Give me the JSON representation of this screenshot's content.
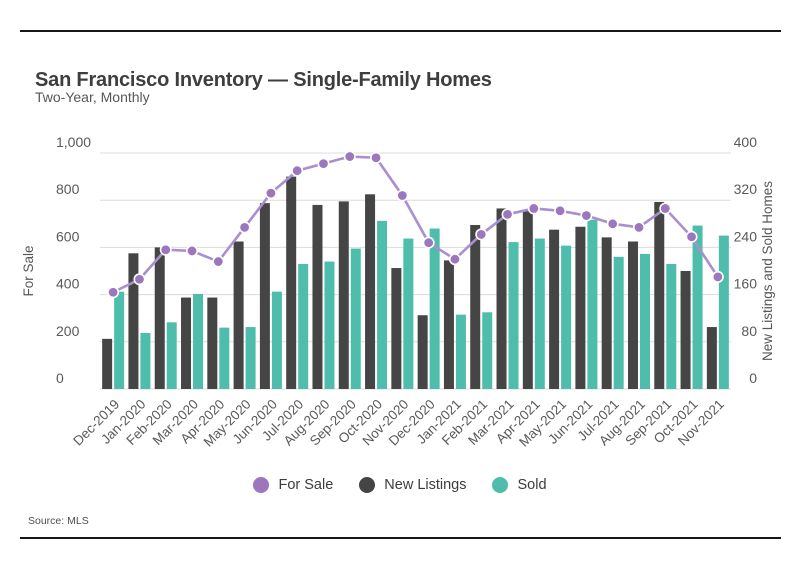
{
  "header": {
    "title": "San Francisco Inventory — Single-Family Homes",
    "subtitle": "Two-Year, Monthly"
  },
  "footer": {
    "source": "Source: MLS"
  },
  "legend": {
    "items": [
      {
        "label": "For Sale",
        "series": "for_sale"
      },
      {
        "label": "New Listings",
        "series": "new_listings"
      },
      {
        "label": "Sold",
        "series": "sold"
      }
    ]
  },
  "colors": {
    "line": "#a98fd0",
    "marker": "#9c77bd",
    "dark_bar": "#454545",
    "teal_bar": "#4fbdab",
    "gridline": "#dcdcdc",
    "axis_text": "#595959"
  },
  "chart_data": {
    "type": "bar",
    "subtype": "combo-line-and-grouped-bars",
    "title": "San Francisco Inventory — Single-Family Homes",
    "subtitle": "Two-Year, Monthly",
    "grid": "horizontal",
    "legend_position": "bottom",
    "categories": [
      "Dec-2019",
      "Jan-2020",
      "Feb-2020",
      "Mar-2020",
      "Apr-2020",
      "May-2020",
      "Jun-2020",
      "Jul-2020",
      "Aug-2020",
      "Sep-2020",
      "Oct-2020",
      "Nov-2020",
      "Dec-2020",
      "Jan-2021",
      "Feb-2021",
      "Mar-2021",
      "Apr-2021",
      "May-2021",
      "Jun-2021",
      "Jul-2021",
      "Aug-2021",
      "Sep-2021",
      "Oct-2021",
      "Nov-2021"
    ],
    "left_axis": {
      "title": "For Sale",
      "range": [
        0,
        1000
      ],
      "ticks": [
        "0",
        "200",
        "400",
        "600",
        "800",
        "1,000"
      ]
    },
    "right_axis": {
      "title": "New Listings and Sold Homes",
      "range": [
        0,
        400
      ],
      "ticks": [
        "0",
        "80",
        "160",
        "240",
        "320",
        "400"
      ]
    },
    "series": [
      {
        "name": "For Sale",
        "type": "line",
        "axis": "left",
        "color": "#9c77bd",
        "values": [
          410,
          465,
          590,
          585,
          540,
          685,
          830,
          925,
          955,
          985,
          980,
          820,
          620,
          550,
          655,
          740,
          765,
          755,
          735,
          700,
          685,
          765,
          645,
          475
        ]
      },
      {
        "name": "New Listings",
        "type": "bar",
        "axis": "right",
        "color": "#454545",
        "values": [
          85,
          230,
          240,
          155,
          155,
          250,
          315,
          360,
          312,
          318,
          330,
          205,
          125,
          218,
          278,
          306,
          303,
          270,
          275,
          257,
          250,
          317,
          200,
          105
        ]
      },
      {
        "name": "Sold",
        "type": "bar",
        "axis": "right",
        "color": "#4fbdab",
        "values": [
          165,
          95,
          113,
          161,
          104,
          105,
          165,
          212,
          216,
          238,
          285,
          255,
          272,
          126,
          130,
          249,
          255,
          243,
          287,
          224,
          229,
          212,
          277,
          260
        ]
      }
    ]
  }
}
